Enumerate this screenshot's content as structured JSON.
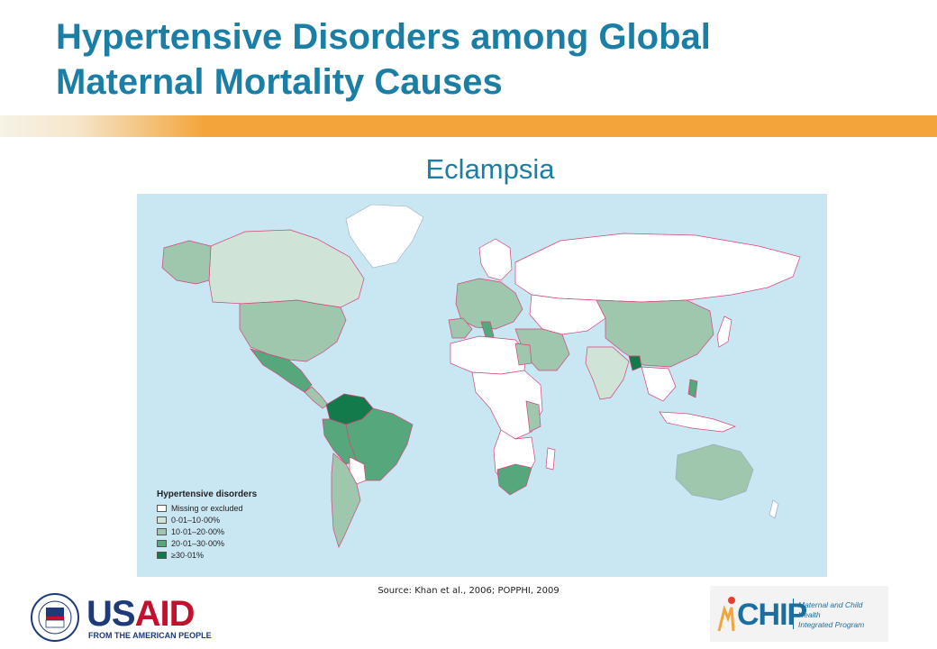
{
  "slide": {
    "title_line1": "Hypertensive Disorders among Global",
    "title_line2": "Maternal Mortality Causes",
    "subtitle": "Eclampsia",
    "source": "Source: Khan et al., 2006; POPPHI, 2009"
  },
  "legend": {
    "title": "Hypertensive disorders",
    "items": [
      {
        "label": "Missing or excluded",
        "color": "#ffffff"
      },
      {
        "label": "0·01–10·00%",
        "color": "#cfe3d6"
      },
      {
        "label": "10·01–20·00%",
        "color": "#9fc7ae"
      },
      {
        "label": "20·01–30·00%",
        "color": "#57a77c"
      },
      {
        "label": "≥30·01%",
        "color": "#137a4c"
      }
    ]
  },
  "colors": {
    "title": "#1b7ea5",
    "ocean": "#c9e6f3",
    "border": "#d4447a",
    "orange_band": "#f3a43a"
  },
  "logos": {
    "usaid_word_us": "US",
    "usaid_word_aid": "AID",
    "usaid_tagline": "FROM THE AMERICAN PEOPLE",
    "mchip_word": "CHIP",
    "mchip_desc_line1": "Maternal and Child Health",
    "mchip_desc_line2": "Integrated Program"
  }
}
